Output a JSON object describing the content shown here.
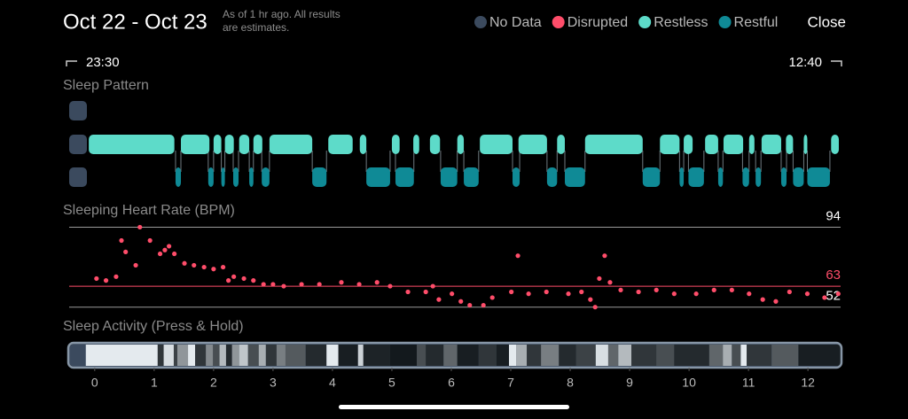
{
  "header": {
    "title": "Oct 22 - Oct 23",
    "note_line1": "As of 1 hr ago. All results",
    "note_line2": "are estimates.",
    "close": "Close"
  },
  "legend": [
    {
      "label": "No Data",
      "color": "#3b4a5e"
    },
    {
      "label": "Disrupted",
      "color": "#ff4d6a"
    },
    {
      "label": "Restless",
      "color": "#5ddbc9"
    },
    {
      "label": "Restful",
      "color": "#0f8a96"
    }
  ],
  "time_range": {
    "start": "23:30",
    "end": "12:40"
  },
  "xlim": [
    -0.43,
    12.55
  ],
  "xticks": [
    0,
    1,
    2,
    3,
    4,
    5,
    6,
    7,
    8,
    9,
    10,
    11,
    12
  ],
  "sleep_pattern": {
    "title": "Sleep Pattern",
    "restless": [
      {
        "start": -0.1,
        "end": 1.34
      },
      {
        "start": 1.45,
        "end": 1.93
      },
      {
        "start": 2.0,
        "end": 2.13
      },
      {
        "start": 2.19,
        "end": 2.34
      },
      {
        "start": 2.43,
        "end": 2.6
      },
      {
        "start": 2.67,
        "end": 2.82
      },
      {
        "start": 2.94,
        "end": 3.66
      },
      {
        "start": 3.93,
        "end": 4.34
      },
      {
        "start": 4.46,
        "end": 4.57
      },
      {
        "start": 5.0,
        "end": 5.13
      },
      {
        "start": 5.36,
        "end": 5.46
      },
      {
        "start": 5.64,
        "end": 5.81
      },
      {
        "start": 6.1,
        "end": 6.21
      },
      {
        "start": 6.48,
        "end": 7.03
      },
      {
        "start": 7.13,
        "end": 7.61
      },
      {
        "start": 7.78,
        "end": 7.91
      },
      {
        "start": 8.25,
        "end": 9.22
      },
      {
        "start": 9.51,
        "end": 9.84
      },
      {
        "start": 9.91,
        "end": 10.06
      },
      {
        "start": 10.27,
        "end": 10.49
      },
      {
        "start": 10.58,
        "end": 10.91
      },
      {
        "start": 11.01,
        "end": 11.1
      },
      {
        "start": 11.22,
        "end": 11.55
      },
      {
        "start": 11.63,
        "end": 11.75
      },
      {
        "start": 11.93,
        "end": 11.99
      },
      {
        "start": 12.39,
        "end": 12.52
      }
    ],
    "restful": [
      {
        "start": 1.36,
        "end": 1.45
      },
      {
        "start": 1.91,
        "end": 2.0
      },
      {
        "start": 2.13,
        "end": 2.19
      },
      {
        "start": 2.33,
        "end": 2.42
      },
      {
        "start": 2.6,
        "end": 2.67
      },
      {
        "start": 2.81,
        "end": 2.94
      },
      {
        "start": 3.66,
        "end": 3.9
      },
      {
        "start": 4.57,
        "end": 4.97
      },
      {
        "start": 5.06,
        "end": 5.37
      },
      {
        "start": 5.82,
        "end": 6.1
      },
      {
        "start": 6.21,
        "end": 6.46
      },
      {
        "start": 7.03,
        "end": 7.15
      },
      {
        "start": 7.61,
        "end": 7.78
      },
      {
        "start": 7.91,
        "end": 8.25
      },
      {
        "start": 9.22,
        "end": 9.51
      },
      {
        "start": 9.84,
        "end": 9.91
      },
      {
        "start": 9.99,
        "end": 10.25
      },
      {
        "start": 10.49,
        "end": 10.57
      },
      {
        "start": 10.9,
        "end": 11.01
      },
      {
        "start": 11.12,
        "end": 11.21
      },
      {
        "start": 11.55,
        "end": 11.64
      },
      {
        "start": 11.75,
        "end": 11.93
      },
      {
        "start": 11.99,
        "end": 12.37
      }
    ]
  },
  "heart_rate": {
    "title": "Sleeping Heart Rate (BPM)",
    "color": "#ff4d6a",
    "ylim": [
      50,
      97
    ],
    "reference_lines": [
      {
        "value": 94,
        "color": "#9a9a9a"
      },
      {
        "value": 63,
        "color": "#ff4d6a"
      },
      {
        "value": 52,
        "color": "#9a9a9a"
      }
    ],
    "x": [
      0.03,
      0.19,
      0.36,
      0.45,
      0.52,
      0.69,
      0.76,
      0.93,
      1.1,
      1.18,
      1.25,
      1.34,
      1.51,
      1.67,
      1.84,
      2.0,
      2.16,
      2.25,
      2.34,
      2.51,
      2.67,
      2.84,
      3.0,
      3.18,
      3.48,
      3.78,
      4.15,
      4.45,
      4.75,
      4.97,
      5.27,
      5.57,
      5.69,
      5.79,
      6.01,
      6.16,
      6.31,
      6.54,
      6.69,
      7.01,
      7.12,
      7.3,
      7.6,
      7.97,
      8.19,
      8.34,
      8.42,
      8.49,
      8.58,
      8.67,
      8.85,
      9.15,
      9.45,
      9.75,
      10.12,
      10.42,
      10.72,
      11.01,
      11.24,
      11.46,
      11.69,
      11.99,
      12.28,
      12.51
    ],
    "values": [
      67,
      66,
      68,
      87,
      81,
      74,
      94,
      87,
      80,
      82,
      84,
      80,
      75,
      74,
      73,
      72,
      73,
      66,
      68,
      67,
      66,
      64,
      64,
      63,
      64,
      64,
      65,
      64,
      65,
      63,
      60,
      60,
      63,
      56,
      59,
      55,
      53,
      53,
      57,
      60,
      79,
      59,
      60,
      59,
      60,
      56,
      52,
      67,
      79,
      65,
      61,
      60,
      61,
      59,
      59,
      61,
      61,
      59,
      56,
      55,
      60,
      59,
      57,
      59
    ]
  },
  "sleep_activity": {
    "title": "Sleep Activity (Press & Hold)",
    "edges": [
      -0.15,
      1.06,
      1.16,
      1.33,
      1.39,
      1.57,
      1.69,
      1.87,
      1.99,
      2.1,
      2.21,
      2.31,
      2.43,
      2.58,
      2.76,
      2.88,
      3.06,
      3.21,
      3.55,
      3.9,
      4.1,
      4.43,
      4.52,
      4.97,
      5.42,
      5.57,
      5.87,
      6.1,
      6.46,
      6.76,
      6.97,
      7.09,
      7.27,
      7.51,
      7.81,
      8.1,
      8.43,
      8.64,
      8.81,
      9.03,
      9.45,
      9.75,
      10.34,
      10.57,
      10.72,
      10.87,
      10.97,
      11.39,
      11.84,
      12.55
    ],
    "brightness": [
      95,
      20,
      90,
      25,
      60,
      95,
      20,
      55,
      30,
      75,
      15,
      60,
      80,
      30,
      70,
      20,
      50,
      35,
      15,
      95,
      10,
      85,
      12,
      8,
      30,
      15,
      40,
      10,
      20,
      10,
      95,
      70,
      20,
      50,
      15,
      25,
      90,
      40,
      75,
      20,
      30,
      15,
      40,
      70,
      30,
      95,
      20,
      35,
      10
    ]
  }
}
